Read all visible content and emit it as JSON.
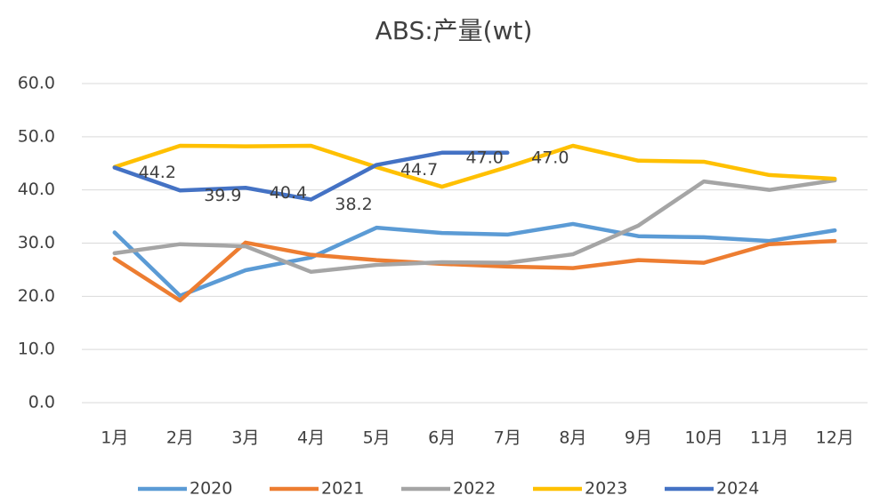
{
  "chart_data": {
    "type": "line",
    "title": "ABS:产量(wt)",
    "categories": [
      "1月",
      "2月",
      "3月",
      "4月",
      "5月",
      "6月",
      "7月",
      "8月",
      "9月",
      "10月",
      "11月",
      "12月"
    ],
    "series": [
      {
        "name": "2020",
        "color": "#5b9bd5",
        "values": [
          32.0,
          20.1,
          24.9,
          27.3,
          32.9,
          31.9,
          31.6,
          33.6,
          31.3,
          31.1,
          30.4,
          32.4
        ]
      },
      {
        "name": "2021",
        "color": "#ed7d31",
        "values": [
          27.1,
          19.2,
          30.1,
          27.8,
          26.8,
          26.1,
          25.6,
          25.3,
          26.8,
          26.3,
          29.8,
          30.4
        ]
      },
      {
        "name": "2022",
        "color": "#a5a5a5",
        "values": [
          28.1,
          29.8,
          29.4,
          24.6,
          25.9,
          26.4,
          26.3,
          27.9,
          33.3,
          41.6,
          40.0,
          41.8
        ]
      },
      {
        "name": "2023",
        "color": "#ffc000",
        "values": [
          44.3,
          48.3,
          48.2,
          48.3,
          44.3,
          40.6,
          44.3,
          48.3,
          45.5,
          45.3,
          42.8,
          42.1
        ]
      },
      {
        "name": "2024",
        "color": "#4472c4",
        "values": [
          44.2,
          39.9,
          40.4,
          38.2,
          44.7,
          47,
          47,
          null,
          null,
          null,
          null,
          null
        ],
        "value_labels": [
          "44.2",
          "39.9",
          "40.4",
          "38.2",
          "44.7",
          "47.0",
          "47.0",
          null,
          null,
          null,
          null,
          null
        ]
      }
    ],
    "ylim": [
      0,
      60
    ],
    "yticks": [
      {
        "value": 0,
        "label": "0.0"
      },
      {
        "value": 10,
        "label": "10.0"
      },
      {
        "value": 20,
        "label": "20.0"
      },
      {
        "value": 30,
        "label": "30.0"
      },
      {
        "value": 40,
        "label": "40.0"
      },
      {
        "value": 50,
        "label": "50.0"
      },
      {
        "value": 60,
        "label": "60.0"
      }
    ],
    "grid": true,
    "legend": "bottom"
  }
}
